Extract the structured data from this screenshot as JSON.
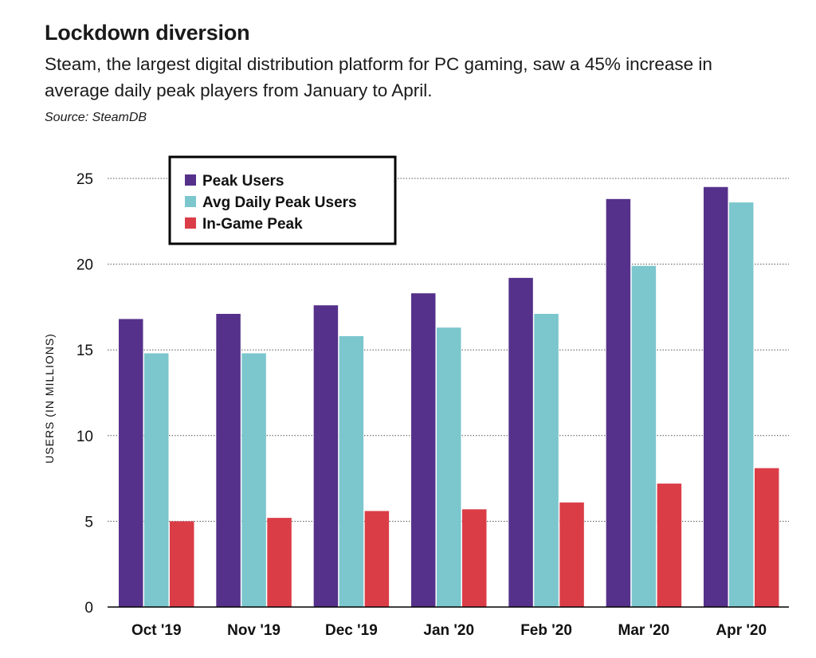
{
  "header": {
    "title": "Lockdown diversion",
    "subtitle": "Steam, the largest digital distribution platform for PC gaming, saw a 45% increase in average daily peak players from January to April.",
    "source": "Source: SteamDB"
  },
  "chart_data": {
    "type": "bar",
    "categories": [
      "Oct '19",
      "Nov '19",
      "Dec '19",
      "Jan '20",
      "Feb '20",
      "Mar '20",
      "Apr '20"
    ],
    "series": [
      {
        "name": "Peak Users",
        "color": "#55318b",
        "values": [
          16.8,
          17.1,
          17.6,
          18.3,
          19.2,
          23.8,
          24.5
        ]
      },
      {
        "name": "Avg Daily Peak Users",
        "color": "#7cc6cd",
        "values": [
          14.8,
          14.8,
          15.8,
          16.3,
          17.1,
          19.9,
          23.6
        ]
      },
      {
        "name": "In-Game Peak",
        "color": "#db3d47",
        "values": [
          5.0,
          5.2,
          5.6,
          5.7,
          6.1,
          7.2,
          8.1
        ]
      }
    ],
    "xlabel": "",
    "ylabel": "USERS (IN MILLIONS)",
    "ylim": [
      0,
      25
    ],
    "yticks": [
      0,
      5,
      10,
      15,
      20,
      25
    ],
    "grid": "dotted horizontal",
    "legend": "top-left"
  }
}
